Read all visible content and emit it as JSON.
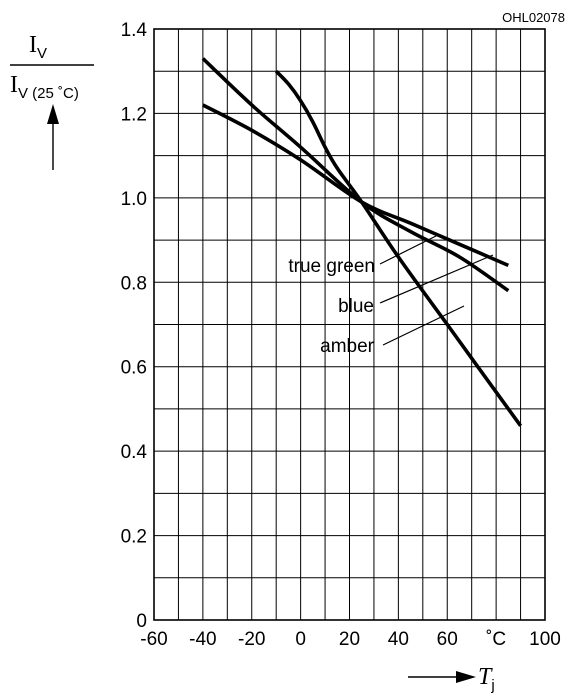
{
  "figure_code": "OHL02078",
  "y_axis_label": {
    "numerator_base": "I",
    "numerator_sub": "V",
    "denominator_base": "I",
    "denominator_sub": "V (25 ˚C)"
  },
  "x_axis_label": {
    "base": "T",
    "sub": "j"
  },
  "x_unit": "˚C",
  "chart_data": {
    "type": "line",
    "xlim": [
      -60,
      100
    ],
    "ylim": [
      0,
      1.4
    ],
    "x_ticks": [
      -60,
      -40,
      -20,
      0,
      20,
      40,
      60,
      100
    ],
    "x_tick_labels": [
      "-60",
      "-40",
      "-20",
      "0",
      "20",
      "40",
      "60",
      "100"
    ],
    "y_ticks": [
      0,
      0.2,
      0.4,
      0.6,
      0.8,
      1.0,
      1.2,
      1.4
    ],
    "y_tick_labels": [
      "0",
      "0.2",
      "0.4",
      "0.6",
      "0.8",
      "1.0",
      "1.2",
      "1.4"
    ],
    "grid": true,
    "series": [
      {
        "name": "true green",
        "x": [
          -40,
          -20,
          0,
          25,
          45,
          65,
          85
        ],
        "y": [
          1.22,
          1.16,
          1.09,
          0.99,
          0.94,
          0.89,
          0.84
        ]
      },
      {
        "name": "blue",
        "x": [
          -40,
          -20,
          0,
          25,
          45,
          65,
          85
        ],
        "y": [
          1.33,
          1.22,
          1.12,
          0.99,
          0.92,
          0.86,
          0.78
        ]
      },
      {
        "name": "amber",
        "x": [
          -10,
          -5,
          0,
          5,
          10,
          15,
          25,
          40,
          60,
          75,
          90
        ],
        "y": [
          1.3,
          1.27,
          1.23,
          1.18,
          1.12,
          1.07,
          0.99,
          0.86,
          0.7,
          0.58,
          0.46
        ]
      }
    ]
  }
}
